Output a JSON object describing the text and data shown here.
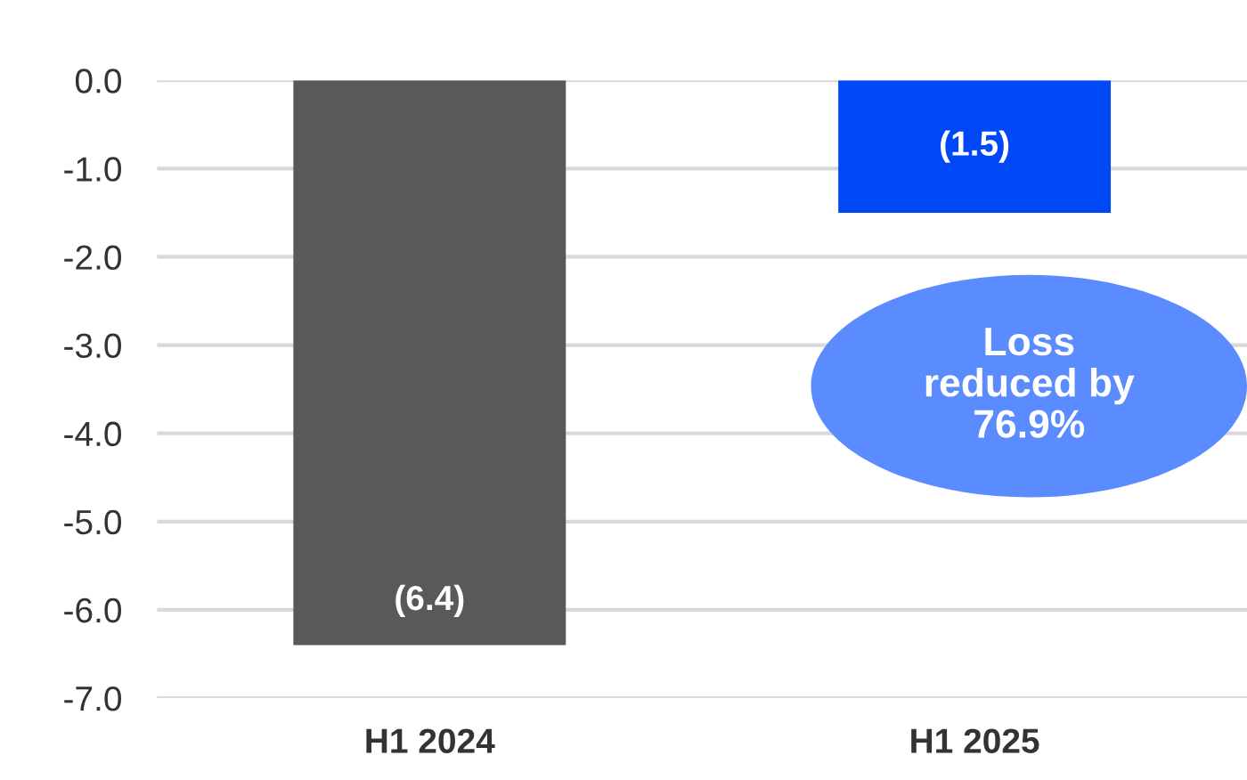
{
  "chart_data": {
    "type": "bar",
    "categories": [
      "H1 2024",
      "H1 2025"
    ],
    "values": [
      -6.4,
      -1.5
    ],
    "colors": [
      "#595959",
      "#0047f5"
    ],
    "value_labels": [
      "(6.4)",
      "(1.5)"
    ],
    "ylim": [
      -7.0,
      0.0
    ],
    "yticks": [
      {
        "value": 0,
        "label": "0.0"
      },
      {
        "value": -1,
        "label": "-1.0"
      },
      {
        "value": -2,
        "label": "-2.0"
      },
      {
        "value": -3,
        "label": "-3.0"
      },
      {
        "value": -4,
        "label": "-4.0"
      },
      {
        "value": -5,
        "label": "-5.0"
      },
      {
        "value": -6,
        "label": "-6.0"
      },
      {
        "value": -7,
        "label": "-7.0"
      }
    ],
    "grid": "y",
    "annotations": [
      "Loss\nreduced by\n76.9%"
    ]
  }
}
